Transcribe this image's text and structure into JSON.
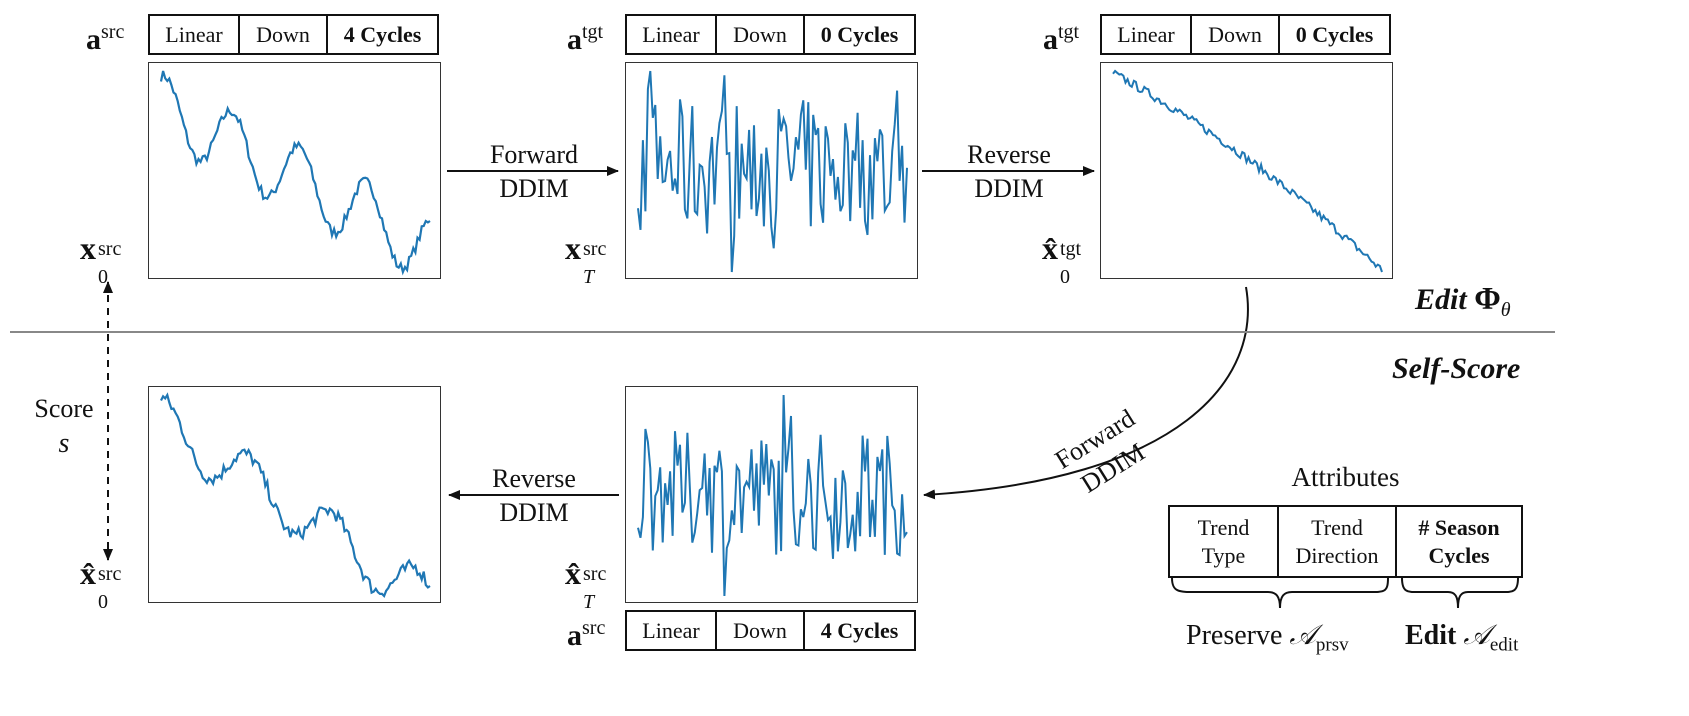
{
  "top_left": {
    "attr_label": "src",
    "cells": [
      "Linear",
      "Down",
      "4 Cycles"
    ],
    "series_label": "src",
    "series_sub": "0"
  },
  "top_middle": {
    "attr_label": "tgt",
    "cells": [
      "Linear",
      "Down",
      "0 Cycles"
    ],
    "series_label": "src",
    "series_sub": "T"
  },
  "top_right": {
    "attr_label": "tgt",
    "cells": [
      "Linear",
      "Down",
      "0 Cycles"
    ],
    "series_label": "tgt",
    "series_sub": "0"
  },
  "bottom_middle": {
    "attr_label": "src",
    "cells": [
      "Linear",
      "Down",
      "4 Cycles"
    ],
    "series_label": "src",
    "series_sub": "T"
  },
  "bottom_left": {
    "series_label": "src",
    "series_sub": "0"
  },
  "arrows": {
    "forward_top": [
      "Forward",
      "DDIM"
    ],
    "reverse_top": [
      "Reverse",
      "DDIM"
    ],
    "forward_curve": [
      "Forward",
      "DDIM"
    ],
    "reverse_bottom": [
      "Reverse",
      "DDIM"
    ]
  },
  "score": {
    "label": "Score",
    "symbol": "s"
  },
  "sections": {
    "edit": "Edit",
    "edit_symbol": "Φ",
    "edit_sub": "θ",
    "self_score": "Self-Score"
  },
  "attributes": {
    "title": "Attributes",
    "cells": [
      [
        "Trend",
        "Type"
      ],
      [
        "Trend",
        "Direction"
      ],
      [
        "# Season",
        "Cycles"
      ]
    ],
    "preserve": "Preserve",
    "preserve_sub": "prsv",
    "edit": "Edit",
    "edit_sub": "edit"
  },
  "colors": {
    "line": "#1f77b4",
    "axis": "#333333"
  }
}
